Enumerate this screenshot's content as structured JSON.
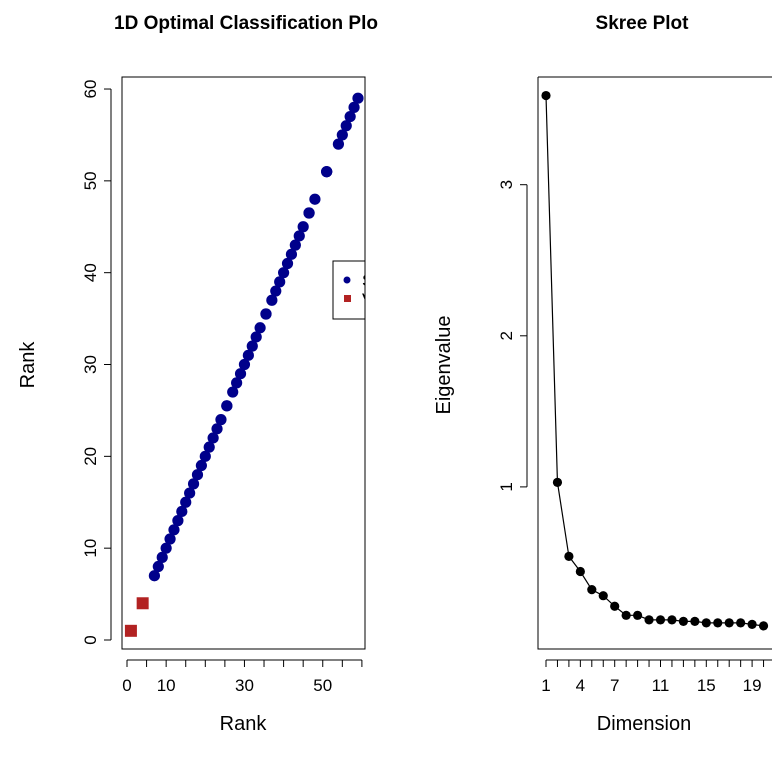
{
  "chart_data": [
    {
      "type": "scatter",
      "title": "1D Optimal Classification Plo",
      "xlabel": "Rank",
      "ylabel": "Rank",
      "xlim": [
        0,
        60
      ],
      "ylim": [
        0,
        60
      ],
      "x_ticks": [
        "0",
        "10",
        "30",
        "50"
      ],
      "y_ticks": [
        "0",
        "10",
        "20",
        "30",
        "40",
        "50",
        "60"
      ],
      "legend": {
        "placement": "right",
        "entries": [
          "S",
          "V"
        ]
      },
      "series": [
        {
          "color": "#00008B",
          "marker": "circle",
          "x": [
            7,
            8,
            9,
            10,
            11,
            12,
            13,
            14,
            15,
            16,
            17,
            18,
            19,
            20,
            21,
            22,
            23,
            24,
            25.5,
            25.5,
            27,
            28,
            29,
            30,
            31,
            32,
            33,
            34,
            35.5,
            35.5,
            37,
            38,
            39,
            40,
            41,
            42,
            43,
            44,
            45,
            46.5,
            46.5,
            48,
            51,
            51,
            51,
            54,
            55,
            56,
            57,
            58,
            59
          ],
          "y": [
            7,
            8,
            9,
            10,
            11,
            12,
            13,
            14,
            15,
            16,
            17,
            18,
            19,
            20,
            21,
            22,
            23,
            24,
            25.5,
            25.5,
            27,
            28,
            29,
            30,
            31,
            32,
            33,
            34,
            35.5,
            35.5,
            37,
            38,
            39,
            40,
            41,
            42,
            43,
            44,
            45,
            46.5,
            46.5,
            48,
            51,
            51,
            51,
            54,
            55,
            56,
            57,
            58,
            59
          ]
        },
        {
          "color": "#B22222",
          "marker": "square",
          "x": [
            1,
            4
          ],
          "y": [
            1,
            4
          ]
        }
      ]
    },
    {
      "type": "line",
      "title": "Skree Plot",
      "xlabel": "Dimension",
      "ylabel": "Eigenvalue",
      "xlim": [
        0,
        20
      ],
      "ylim": [
        0,
        3.6
      ],
      "x_tick_labels": [
        "1",
        "4",
        "7",
        "11",
        "15",
        "19"
      ],
      "y_tick_labels": [
        "1",
        "2",
        "3"
      ],
      "color": "#000000",
      "marker": "circle",
      "x": [
        1,
        2,
        3,
        4,
        5,
        6,
        7,
        8,
        9,
        10,
        11,
        12,
        13,
        14,
        15,
        16,
        17,
        18,
        19,
        20
      ],
      "y": [
        3.59,
        1.03,
        0.54,
        0.44,
        0.32,
        0.28,
        0.21,
        0.15,
        0.15,
        0.12,
        0.12,
        0.12,
        0.11,
        0.11,
        0.1,
        0.1,
        0.1,
        0.1,
        0.09,
        0.08
      ]
    }
  ]
}
